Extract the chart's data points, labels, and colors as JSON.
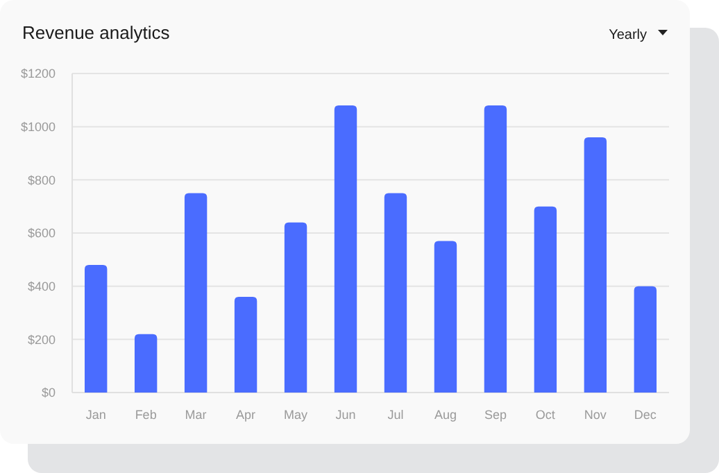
{
  "chart_data": {
    "type": "bar",
    "title": "Revenue analytics",
    "annotations": [
      "Yearly"
    ],
    "categories": [
      "Jan",
      "Feb",
      "Mar",
      "Apr",
      "May",
      "Jun",
      "Jul",
      "Aug",
      "Sep",
      "Oct",
      "Nov",
      "Dec"
    ],
    "values": [
      480,
      220,
      750,
      360,
      640,
      1080,
      750,
      570,
      1080,
      700,
      960,
      400
    ],
    "color": "#4a6cff",
    "ylim": [
      0,
      1200
    ],
    "yticks": [
      {
        "value": 0,
        "label": "$0"
      },
      {
        "value": 200,
        "label": "$200"
      },
      {
        "value": 400,
        "label": "$400"
      },
      {
        "value": 600,
        "label": "$600"
      },
      {
        "value": 800,
        "label": "$800"
      },
      {
        "value": 1000,
        "label": "$1000"
      },
      {
        "value": 1200,
        "label": "$1200"
      }
    ],
    "grid": "y"
  }
}
